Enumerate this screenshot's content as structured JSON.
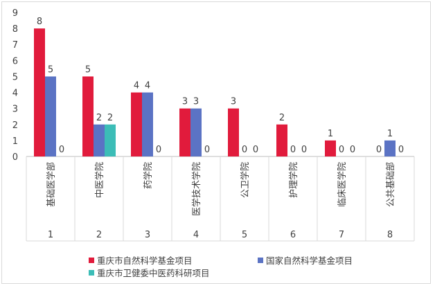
{
  "chart_data": {
    "type": "bar",
    "categories": [
      "基础医学部",
      "中医学院",
      "药学院",
      "医学技术学院",
      "公卫学院",
      "护理学院",
      "临床医学院",
      "公共基础部"
    ],
    "category_numbers": [
      "1",
      "2",
      "3",
      "4",
      "5",
      "6",
      "7",
      "8"
    ],
    "series": [
      {
        "name": "重庆市自然科学基金项目",
        "values": [
          8,
          5,
          4,
          3,
          3,
          2,
          1,
          0
        ],
        "color": "#e11b3c"
      },
      {
        "name": "国家自然科学基金项目",
        "values": [
          5,
          2,
          4,
          3,
          0,
          0,
          0,
          1
        ],
        "color": "#5b73c4"
      },
      {
        "name": "重庆市卫健委中医药科研项目",
        "values": [
          0,
          2,
          0,
          0,
          0,
          0,
          0,
          0
        ],
        "color": "#3cbdb7"
      }
    ],
    "ylim": [
      0,
      9
    ],
    "yticks": [
      0,
      1,
      2,
      3,
      4,
      5,
      6,
      7,
      8,
      9
    ],
    "grid": false,
    "legend_position": "bottom"
  }
}
